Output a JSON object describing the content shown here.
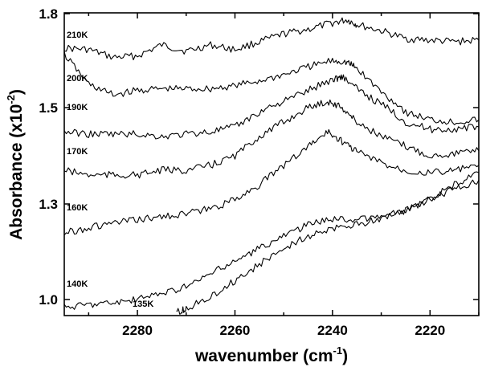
{
  "chart_data": {
    "type": "line",
    "xlabel": "wavenumber (cm",
    "xlabel_sup": "-1",
    "xlabel_close": ")",
    "ylabel": "Absorbance (x10",
    "ylabel_sup": "-2",
    "ylabel_close": ")",
    "x_reversed": true,
    "xlim": [
      2295,
      2210
    ],
    "ylim": [
      0.96,
      1.8
    ],
    "x_ticks": [
      2280,
      2260,
      2240,
      2220
    ],
    "y_ticks": [
      1.0,
      1.3,
      1.5,
      1.8
    ],
    "x_tick_labels": [
      "2280",
      "2260",
      "2240",
      "2220"
    ],
    "y_tick_labels": [
      "1.0",
      "1.3",
      "1.5",
      "1.8"
    ],
    "grid": false,
    "legend": "none",
    "line_color": "#000000",
    "series": [
      {
        "name": "210K",
        "x": [
          2295,
          2290,
          2285,
          2280,
          2275,
          2270,
          2265,
          2260,
          2255,
          2250,
          2245,
          2240,
          2237,
          2235,
          2230,
          2225,
          2220,
          2215,
          2210
        ],
        "y": [
          1.69,
          1.685,
          1.66,
          1.665,
          1.7,
          1.68,
          1.7,
          1.685,
          1.71,
          1.735,
          1.75,
          1.77,
          1.78,
          1.765,
          1.745,
          1.72,
          1.715,
          1.71,
          1.715
        ]
      },
      {
        "name": "200K",
        "x": [
          2295,
          2290,
          2285,
          2280,
          2275,
          2270,
          2265,
          2260,
          2255,
          2250,
          2245,
          2240,
          2237,
          2235,
          2230,
          2225,
          2220,
          2215,
          2210
        ],
        "y": [
          1.67,
          1.575,
          1.54,
          1.555,
          1.56,
          1.56,
          1.56,
          1.57,
          1.585,
          1.605,
          1.63,
          1.65,
          1.645,
          1.625,
          1.55,
          1.49,
          1.475,
          1.47,
          1.475
        ]
      },
      {
        "name": "190K",
        "x": [
          2295,
          2290,
          2285,
          2280,
          2275,
          2270,
          2265,
          2260,
          2255,
          2250,
          2245,
          2240,
          2238,
          2235,
          2230,
          2225,
          2220,
          2215,
          2210
        ],
        "y": [
          1.45,
          1.445,
          1.445,
          1.445,
          1.44,
          1.445,
          1.45,
          1.46,
          1.49,
          1.52,
          1.555,
          1.59,
          1.6,
          1.56,
          1.51,
          1.47,
          1.455,
          1.455,
          1.46
        ]
      },
      {
        "name": "170K",
        "x": [
          2295,
          2290,
          2285,
          2280,
          2275,
          2270,
          2265,
          2260,
          2255,
          2250,
          2245,
          2241,
          2238,
          2235,
          2230,
          2225,
          2220,
          2215,
          2210
        ],
        "y": [
          1.37,
          1.36,
          1.36,
          1.36,
          1.37,
          1.37,
          1.38,
          1.4,
          1.44,
          1.47,
          1.5,
          1.52,
          1.5,
          1.47,
          1.44,
          1.42,
          1.4,
          1.405,
          1.41
        ]
      },
      {
        "name": "160K",
        "x": [
          2295,
          2290,
          2285,
          2280,
          2275,
          2270,
          2265,
          2260,
          2255,
          2250,
          2245,
          2241,
          2238,
          2235,
          2230,
          2225,
          2220,
          2215,
          2210
        ],
        "y": [
          1.21,
          1.225,
          1.24,
          1.25,
          1.26,
          1.27,
          1.285,
          1.31,
          1.34,
          1.38,
          1.42,
          1.45,
          1.43,
          1.41,
          1.385,
          1.37,
          1.365,
          1.37,
          1.38
        ]
      },
      {
        "name": "140K",
        "x": [
          2295,
          2290,
          2285,
          2280,
          2275,
          2270,
          2265,
          2260,
          2255,
          2250,
          2245,
          2240,
          2235,
          2230,
          2225,
          2220,
          2215,
          2210
        ],
        "y": [
          0.975,
          0.985,
          0.99,
          1.0,
          1.02,
          1.04,
          1.08,
          1.12,
          1.16,
          1.2,
          1.235,
          1.255,
          1.25,
          1.26,
          1.28,
          1.31,
          1.33,
          1.35
        ]
      },
      {
        "name": "135K",
        "x": [
          2272,
          2270,
          2265,
          2260,
          2255,
          2250,
          2245,
          2240,
          2235,
          2230,
          2225,
          2220,
          2215,
          2210
        ],
        "y": [
          0.96,
          0.97,
          1.01,
          1.06,
          1.11,
          1.16,
          1.2,
          1.22,
          1.235,
          1.255,
          1.28,
          1.31,
          1.34,
          1.365
        ]
      }
    ]
  }
}
